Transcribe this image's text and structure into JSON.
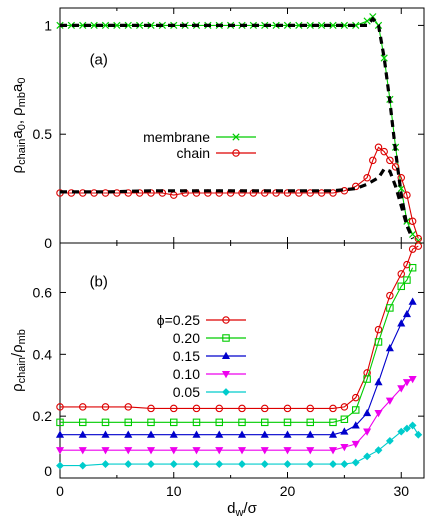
{
  "chart_data": [
    {
      "type": "line",
      "panel_label": "(a)",
      "ylabel": "ρchaina0, ρmba0",
      "xlabel": "",
      "xlim": [
        0,
        32
      ],
      "ylim": [
        0,
        1.08
      ],
      "x_ticks": [
        0,
        10,
        20,
        30
      ],
      "y_ticks": [
        0,
        0.5,
        1
      ],
      "y_tick_labels": [
        "0",
        "0.5",
        "1"
      ],
      "legend_position": "center",
      "series": [
        {
          "name": "membrane",
          "color": "#00cc00",
          "marker": "x",
          "x": [
            0,
            1,
            2,
            3,
            4,
            5,
            6,
            7,
            8,
            9,
            10,
            11,
            12,
            13,
            14,
            15,
            16,
            17,
            18,
            19,
            20,
            21,
            22,
            23,
            24,
            25,
            26,
            27,
            27.5,
            28,
            28.5,
            29,
            29.5,
            30,
            30.5,
            31,
            31.5
          ],
          "y": [
            1,
            1,
            1,
            1,
            1,
            1,
            1,
            1,
            1,
            1,
            1,
            1,
            1,
            1,
            1,
            1,
            1,
            1,
            1,
            1,
            1,
            1,
            1,
            1,
            1,
            1,
            1,
            1.02,
            1.04,
            1.0,
            0.85,
            0.66,
            0.44,
            0.25,
            0.1,
            0.04,
            0.01
          ]
        },
        {
          "name": "chain",
          "color": "#dd0000",
          "marker": "o",
          "x": [
            0,
            1,
            2,
            3,
            4,
            5,
            6,
            7,
            8,
            9,
            10,
            11,
            12,
            13,
            14,
            15,
            16,
            17,
            18,
            19,
            20,
            21,
            22,
            23,
            24,
            25,
            26,
            27,
            27.5,
            28,
            28.5,
            29,
            29.5,
            30,
            30.5,
            31,
            31.5
          ],
          "y": [
            0.23,
            0.23,
            0.23,
            0.23,
            0.23,
            0.23,
            0.23,
            0.23,
            0.23,
            0.23,
            0.22,
            0.23,
            0.23,
            0.23,
            0.23,
            0.23,
            0.23,
            0.23,
            0.23,
            0.23,
            0.23,
            0.23,
            0.23,
            0.23,
            0.23,
            0.24,
            0.26,
            0.3,
            0.38,
            0.44,
            0.42,
            0.38,
            0.35,
            0.3,
            0.22,
            0.1,
            0.02
          ]
        },
        {
          "name": "",
          "style": "dashed",
          "color": "#000000",
          "x": [
            0,
            4,
            8,
            12,
            16,
            20,
            24,
            26,
            27,
            28,
            28.5,
            29,
            29.5,
            30,
            30.5,
            31
          ],
          "y": [
            0.235,
            0.235,
            0.24,
            0.24,
            0.24,
            0.24,
            0.24,
            0.25,
            0.27,
            0.3,
            0.34,
            0.33,
            0.26,
            0.17,
            0.08,
            0.02
          ]
        },
        {
          "name": "",
          "style": "dashed",
          "color": "#000000",
          "x": [
            0,
            5,
            10,
            15,
            20,
            25,
            27,
            27.5,
            28,
            28.5,
            29,
            29.5,
            30,
            30.5,
            31
          ],
          "y": [
            1,
            1,
            1,
            1,
            1,
            1,
            1.0,
            1.03,
            1.0,
            0.85,
            0.65,
            0.42,
            0.22,
            0.08,
            0.02
          ]
        }
      ]
    },
    {
      "type": "line",
      "panel_label": "(b)",
      "ylabel": "ρchain/ρmb",
      "xlabel": "dw/σ",
      "xlim": [
        0,
        32
      ],
      "ylim": [
        0,
        0.76
      ],
      "x_ticks": [
        0,
        10,
        20,
        30
      ],
      "y_ticks": [
        0,
        0.2,
        0.4,
        0.6
      ],
      "y_tick_labels": [
        "0",
        "0.2",
        "0.4",
        "0.6"
      ],
      "legend_position": "center-left",
      "series": [
        {
          "name": "ϕ=0.25",
          "color": "#dd0000",
          "marker": "o",
          "x": [
            0,
            2,
            4,
            6,
            8,
            10,
            12,
            14,
            16,
            18,
            20,
            22,
            24,
            25,
            26,
            27,
            28,
            29,
            30,
            30.5,
            31,
            31.5
          ],
          "y": [
            0.23,
            0.23,
            0.23,
            0.23,
            0.225,
            0.225,
            0.225,
            0.225,
            0.225,
            0.225,
            0.225,
            0.225,
            0.225,
            0.23,
            0.26,
            0.34,
            0.48,
            0.59,
            0.66,
            0.69,
            0.74,
            0.75
          ]
        },
        {
          "name": "0.20",
          "color": "#00cc00",
          "marker": "square",
          "x": [
            0,
            2,
            4,
            6,
            8,
            10,
            12,
            14,
            16,
            18,
            20,
            22,
            24,
            25,
            26,
            27,
            28,
            29,
            30,
            30.5,
            31
          ],
          "y": [
            0.18,
            0.18,
            0.18,
            0.18,
            0.18,
            0.18,
            0.18,
            0.18,
            0.18,
            0.18,
            0.18,
            0.18,
            0.18,
            0.19,
            0.22,
            0.32,
            0.44,
            0.55,
            0.62,
            0.64,
            0.68
          ]
        },
        {
          "name": "0.15",
          "color": "#0000cc",
          "marker": "triangle",
          "x": [
            0,
            2,
            4,
            6,
            8,
            10,
            12,
            14,
            16,
            18,
            20,
            22,
            24,
            25,
            26,
            27,
            28,
            29,
            30,
            30.5,
            31
          ],
          "y": [
            0.14,
            0.14,
            0.14,
            0.14,
            0.14,
            0.14,
            0.14,
            0.14,
            0.14,
            0.14,
            0.14,
            0.14,
            0.14,
            0.15,
            0.17,
            0.21,
            0.31,
            0.42,
            0.5,
            0.53,
            0.57
          ]
        },
        {
          "name": "0.10",
          "color": "#ee00ee",
          "marker": "triangle-down",
          "x": [
            0,
            2,
            4,
            6,
            8,
            10,
            12,
            14,
            16,
            18,
            20,
            22,
            24,
            25,
            26,
            27,
            28,
            29,
            30,
            30.5,
            31
          ],
          "y": [
            0.09,
            0.09,
            0.09,
            0.09,
            0.09,
            0.09,
            0.09,
            0.09,
            0.09,
            0.09,
            0.09,
            0.09,
            0.09,
            0.1,
            0.11,
            0.15,
            0.21,
            0.25,
            0.29,
            0.31,
            0.32
          ]
        },
        {
          "name": "0.05",
          "color": "#00cccc",
          "marker": "diamond",
          "x": [
            0,
            2,
            4,
            6,
            8,
            10,
            12,
            14,
            16,
            18,
            20,
            22,
            24,
            25,
            26,
            27,
            28,
            29,
            30,
            30.5,
            31,
            31.5
          ],
          "y": [
            0.04,
            0.04,
            0.045,
            0.045,
            0.045,
            0.045,
            0.045,
            0.045,
            0.045,
            0.045,
            0.045,
            0.045,
            0.045,
            0.045,
            0.05,
            0.07,
            0.09,
            0.12,
            0.15,
            0.16,
            0.17,
            0.14
          ]
        }
      ]
    }
  ]
}
